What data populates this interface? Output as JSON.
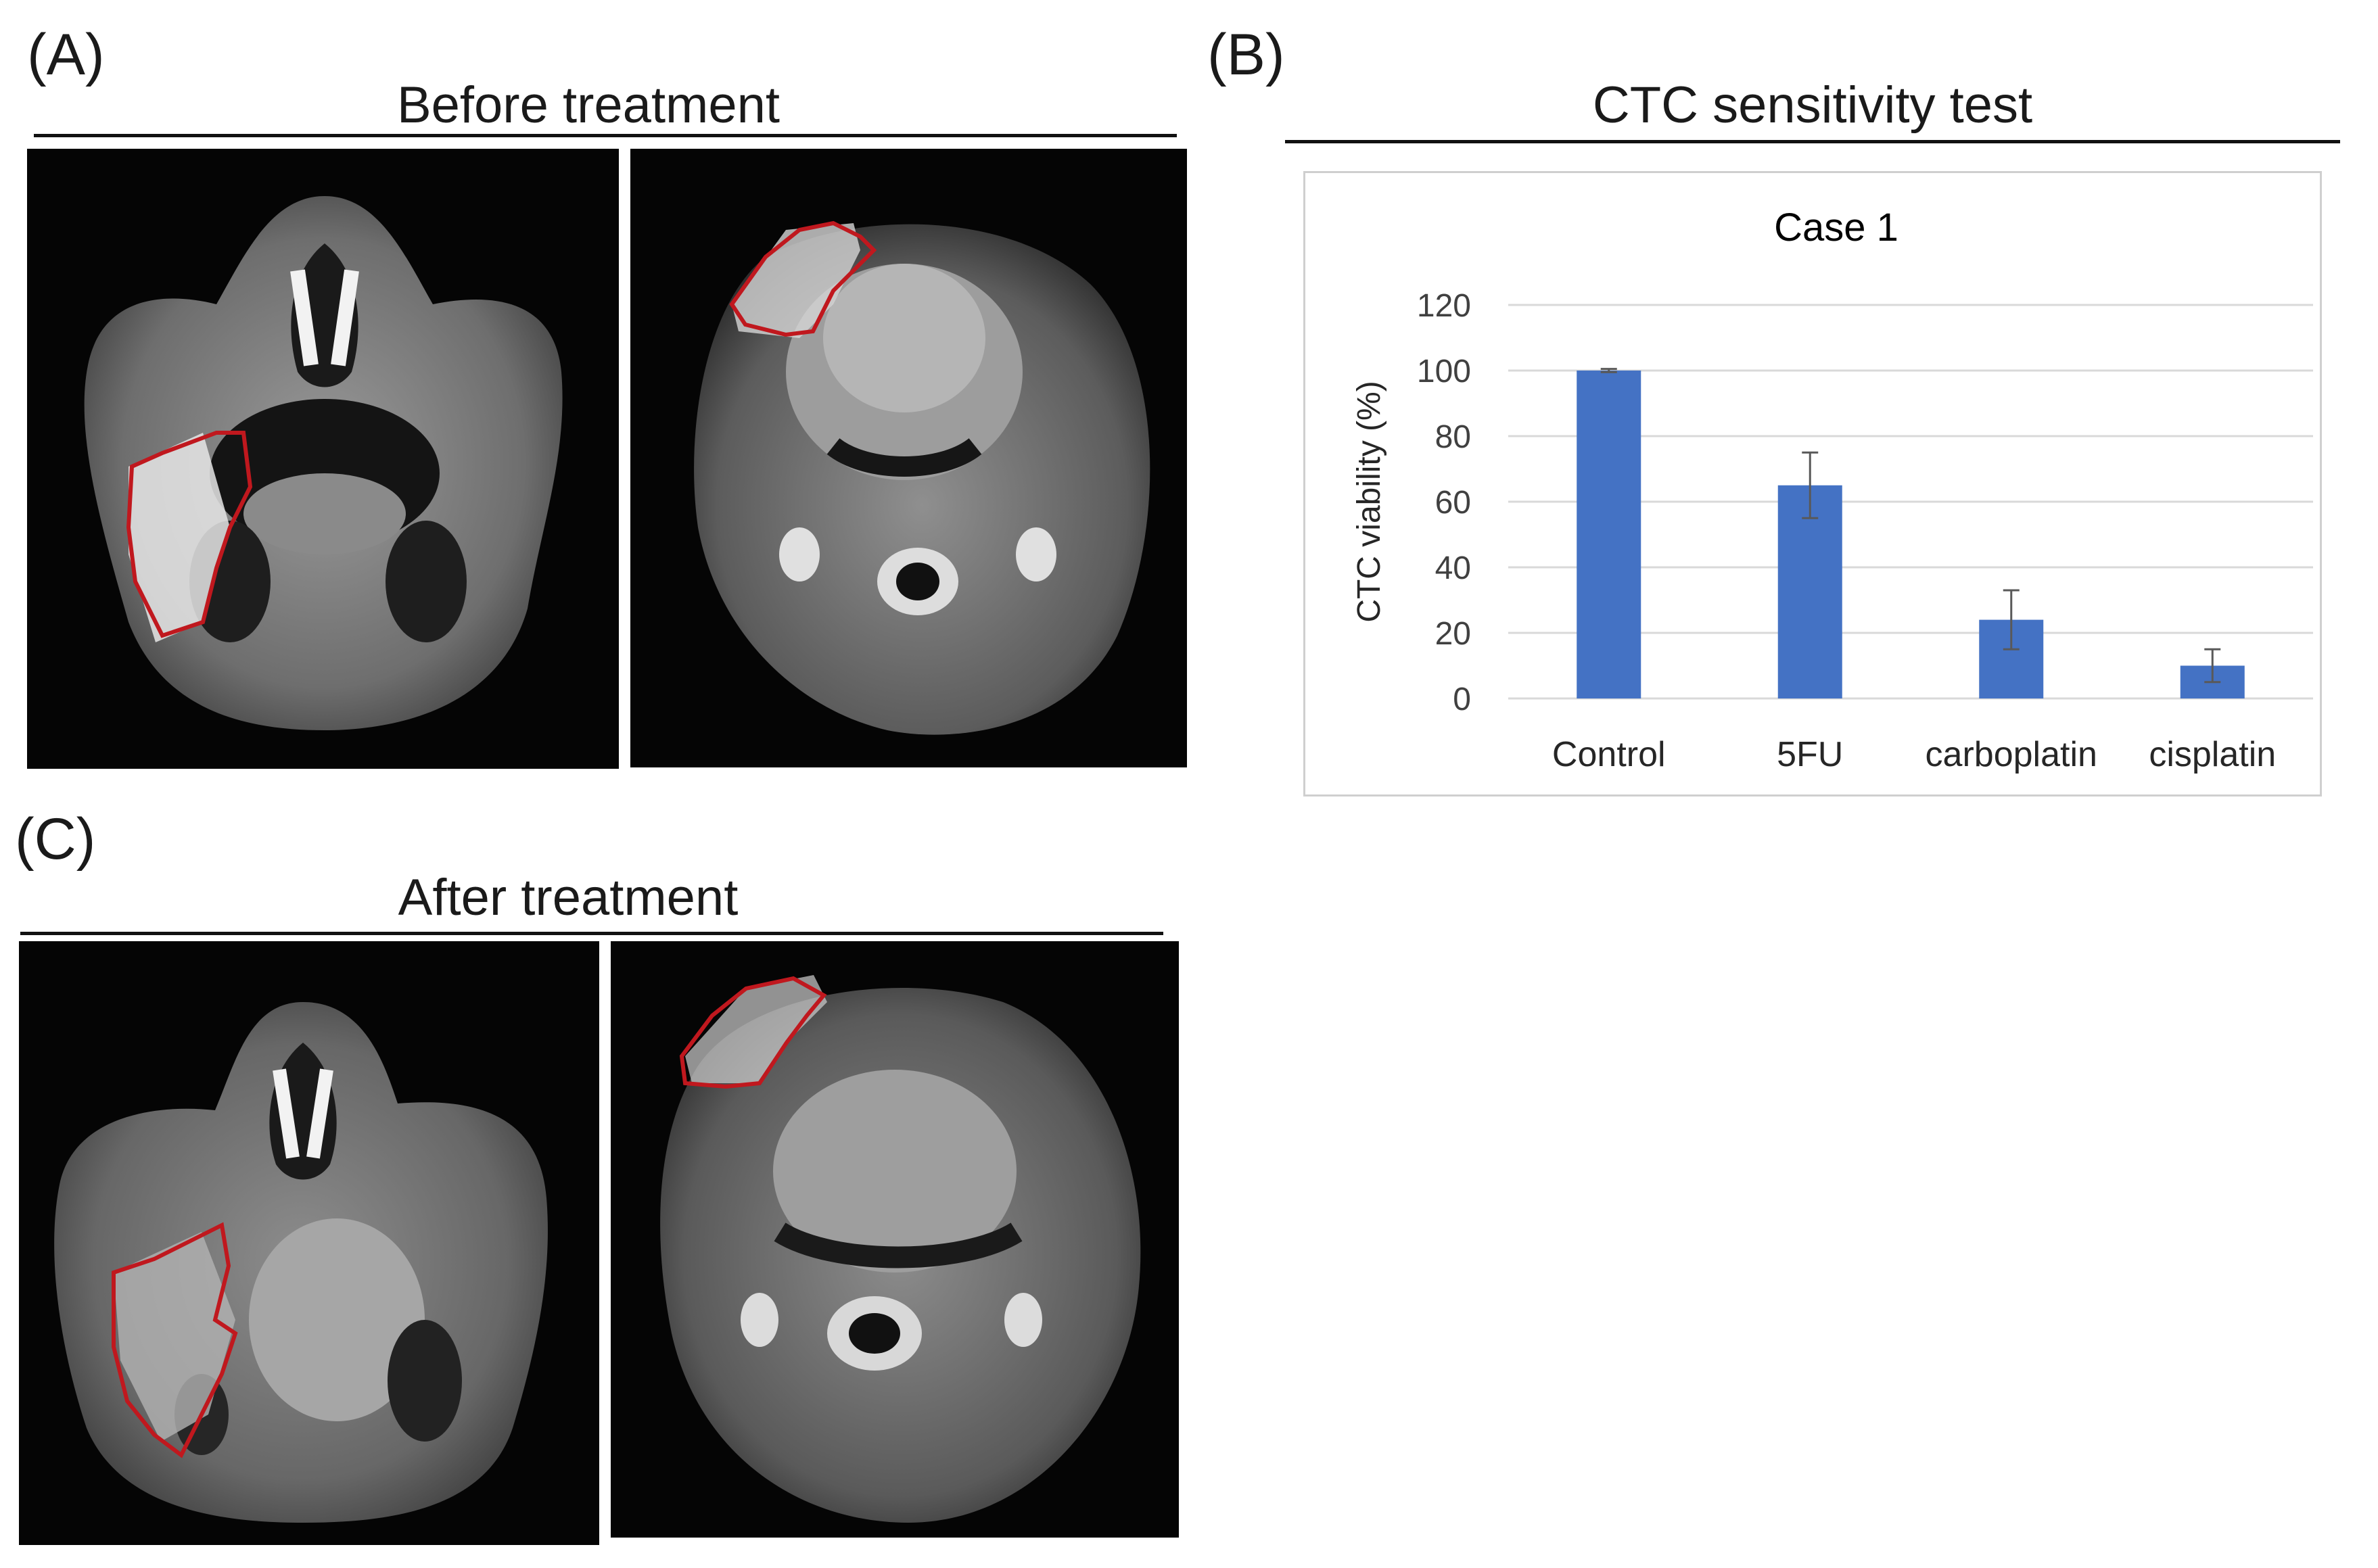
{
  "panels": {
    "a_label": "(A)",
    "b_label": "(B)",
    "c_label": "(C)",
    "before_title": "Before treatment",
    "b_title": "CTC sensitivity test",
    "after_title": "After treatment"
  },
  "images": [
    {
      "name": "mri-before-coronal",
      "description": "MRI scan"
    },
    {
      "name": "mri-before-axial",
      "description": "MRI scan"
    },
    {
      "name": "mri-after-coronal",
      "description": "MRI scan"
    },
    {
      "name": "mri-after-axial",
      "description": "MRI scan"
    }
  ],
  "colors": {
    "bar": "#4472C4",
    "outline": "#c0181e",
    "gridline": "#d9d9d9"
  },
  "chart_data": {
    "type": "bar",
    "title": "Case 1",
    "categories": [
      "Control",
      "5FU",
      "carboplatin",
      "cisplatin"
    ],
    "values": [
      100,
      65,
      24,
      10
    ],
    "error": [
      0.5,
      10,
      9,
      5
    ],
    "xlabel": "",
    "ylabel": "CTC viability (%)",
    "ylim": [
      0,
      120
    ],
    "yticks": [
      0,
      20,
      40,
      60,
      80,
      100,
      120
    ],
    "grid": true,
    "legend": "none"
  }
}
